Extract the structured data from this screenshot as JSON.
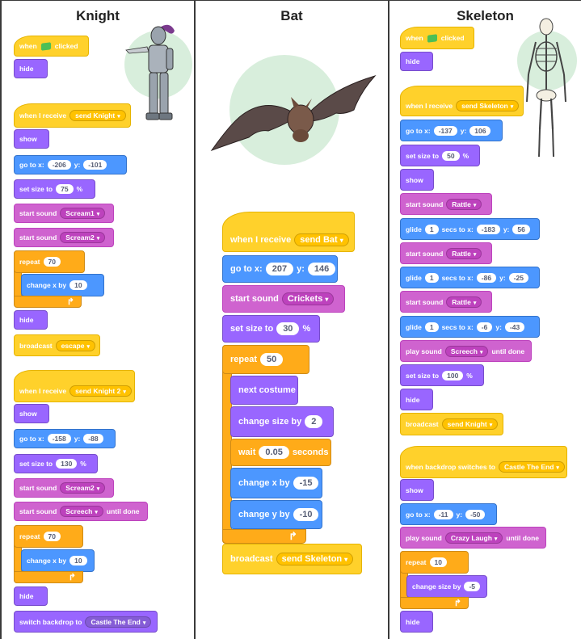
{
  "columns": {
    "knight": {
      "title": "Knight"
    },
    "bat": {
      "title": "Bat"
    },
    "skeleton": {
      "title": "Skeleton"
    }
  },
  "knight": {
    "s1": {
      "when": "when",
      "clicked": "clicked",
      "hide": "hide"
    },
    "s2": {
      "when_receive": "when I receive",
      "msg": "send Knight",
      "show": "show",
      "goto": "go to x:",
      "x": "-206",
      "y_label": "y:",
      "y": "-101",
      "setsize": "set size to",
      "size": "75",
      "pct": "%",
      "start_sound": "start sound",
      "sound1": "Scream1",
      "sound2": "Scream2",
      "repeat": "repeat",
      "repeat_n": "70",
      "changex": "change x by",
      "changex_v": "10",
      "hide": "hide",
      "broadcast": "broadcast",
      "broadcast_msg": "escape"
    },
    "s3": {
      "when_receive": "when I receive",
      "msg": "send Knight 2",
      "show": "show",
      "goto": "go to x:",
      "x": "-158",
      "y_label": "y:",
      "y": "-88",
      "setsize": "set size to",
      "size": "130",
      "pct": "%",
      "start_sound": "start sound",
      "sound1": "Scream2",
      "sound2": "Screech",
      "until_done": "until done",
      "repeat": "repeat",
      "repeat_n": "70",
      "changex": "change x by",
      "changex_v": "10",
      "hide": "hide",
      "switch": "switch backdrop to",
      "backdrop": "Castle The End"
    }
  },
  "bat": {
    "when_receive": "when I receive",
    "msg": "send Bat",
    "goto": "go to x:",
    "x": "207",
    "y_label": "y:",
    "y": "146",
    "start_sound": "start sound",
    "sound": "Crickets",
    "setsize": "set size to",
    "size": "30",
    "pct": "%",
    "repeat": "repeat",
    "repeat_n": "50",
    "next_costume": "next costume",
    "change_size": "change size by",
    "change_size_v": "2",
    "wait": "wait",
    "wait_v": "0.05",
    "seconds": "seconds",
    "changex": "change x by",
    "changex_v": "-15",
    "changey": "change y by",
    "changey_v": "-10",
    "broadcast": "broadcast",
    "broadcast_msg": "send Skeleton"
  },
  "skeleton": {
    "s1": {
      "when": "when",
      "clicked": "clicked",
      "hide": "hide"
    },
    "s2": {
      "when_receive": "when I receive",
      "msg": "send Skeleton",
      "goto": "go to x:",
      "x": "-137",
      "y_label": "y:",
      "y": "106",
      "setsize": "set size to",
      "size": "50",
      "pct": "%",
      "show": "show",
      "start_sound": "start sound",
      "sound": "Rattle",
      "glide": "glide",
      "secs_to": "secs to x:",
      "g1_s": "1",
      "g1_x": "-183",
      "g1_y": "56",
      "g2_s": "1",
      "g2_x": "-86",
      "g2_y": "-25",
      "g3_s": "1",
      "g3_x": "-6",
      "g3_y": "-43",
      "play_sound": "play sound",
      "play_sound_v": "Screech",
      "until_done": "until done",
      "setsize2": "100",
      "hide": "hide",
      "broadcast": "broadcast",
      "broadcast_msg": "send Knight"
    },
    "s3": {
      "when_backdrop": "when backdrop switches to",
      "backdrop": "Castle The End",
      "show": "show",
      "goto": "go to x:",
      "x": "-11",
      "y_label": "y:",
      "y": "-50",
      "play_sound": "play sound",
      "sound": "Crazy Laugh",
      "until_done": "until done",
      "repeat": "repeat",
      "repeat_n": "10",
      "change_size": "change size by",
      "change_size_v": "-5",
      "hide": "hide"
    }
  },
  "colors": {
    "events": "#ffd12b",
    "looks": "#9966ff",
    "motion": "#4c97ff",
    "sound": "#cf63cf",
    "control": "#ffab19"
  },
  "icons": {
    "green_flag": "green-flag-icon",
    "loop_arrow": "loop-arrow-icon",
    "dropdown": "chevron-down-icon"
  }
}
